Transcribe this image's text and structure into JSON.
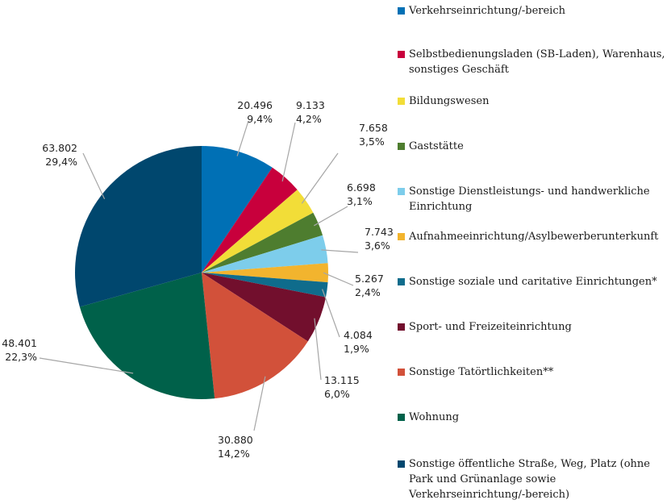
{
  "chart_data": {
    "type": "pie",
    "slices": [
      {
        "label": "Verkehrseinrichtung/-bereich",
        "value": 20496,
        "value_text": "20.496",
        "percent_text": "9,4%",
        "color": "#0070B5"
      },
      {
        "label": "Selbstbedienungsladen (SB-Laden), Warenhaus, sonstiges Geschäft",
        "value": 9133,
        "value_text": "9.133",
        "percent_text": "4,2%",
        "color": "#C8003C"
      },
      {
        "label": "Bildungswesen",
        "value": 7658,
        "value_text": "7.658",
        "percent_text": "3,5%",
        "color": "#F2DD38"
      },
      {
        "label": "Gaststätte",
        "value": 6698,
        "value_text": "6.698",
        "percent_text": "3,1%",
        "color": "#4E7D2F"
      },
      {
        "label": "Sonstige Dienstleistungs- und handwerkliche Einrichtung",
        "value": 7743,
        "value_text": "7.743",
        "percent_text": "3,6%",
        "color": "#7DCDEB"
      },
      {
        "label": "Aufnahmeeinrichtung/Asylbewerberunterkunft",
        "value": 5267,
        "value_text": "5.267",
        "percent_text": "2,4%",
        "color": "#F2B42E"
      },
      {
        "label": "Sonstige soziale und caritative Einrichtungen*",
        "value": 4084,
        "value_text": "4.084",
        "percent_text": "1,9%",
        "color": "#0F6C8C"
      },
      {
        "label": "Sport- und Freizeiteinrichtung",
        "value": 13115,
        "value_text": "13.115",
        "percent_text": "6,0%",
        "color": "#720F2D"
      },
      {
        "label": "Sonstige Tatörtlichkeiten**",
        "value": 30880,
        "value_text": "30.880",
        "percent_text": "14,2%",
        "color": "#D2513A"
      },
      {
        "label": "Wohnung",
        "value": 48401,
        "value_text": "48.401",
        "percent_text": "22,3%",
        "color": "#00614A"
      },
      {
        "label": "Sonstige öffentliche Straße, Weg, Platz (ohne Park und Grünanlage sowie Verkehrseinrichtung/-bereich)",
        "value": 63802,
        "value_text": "63.802",
        "percent_text": "29,4%",
        "color": "#00476E"
      }
    ],
    "legend_position": "right",
    "leader_color": "#A6A6A6"
  }
}
